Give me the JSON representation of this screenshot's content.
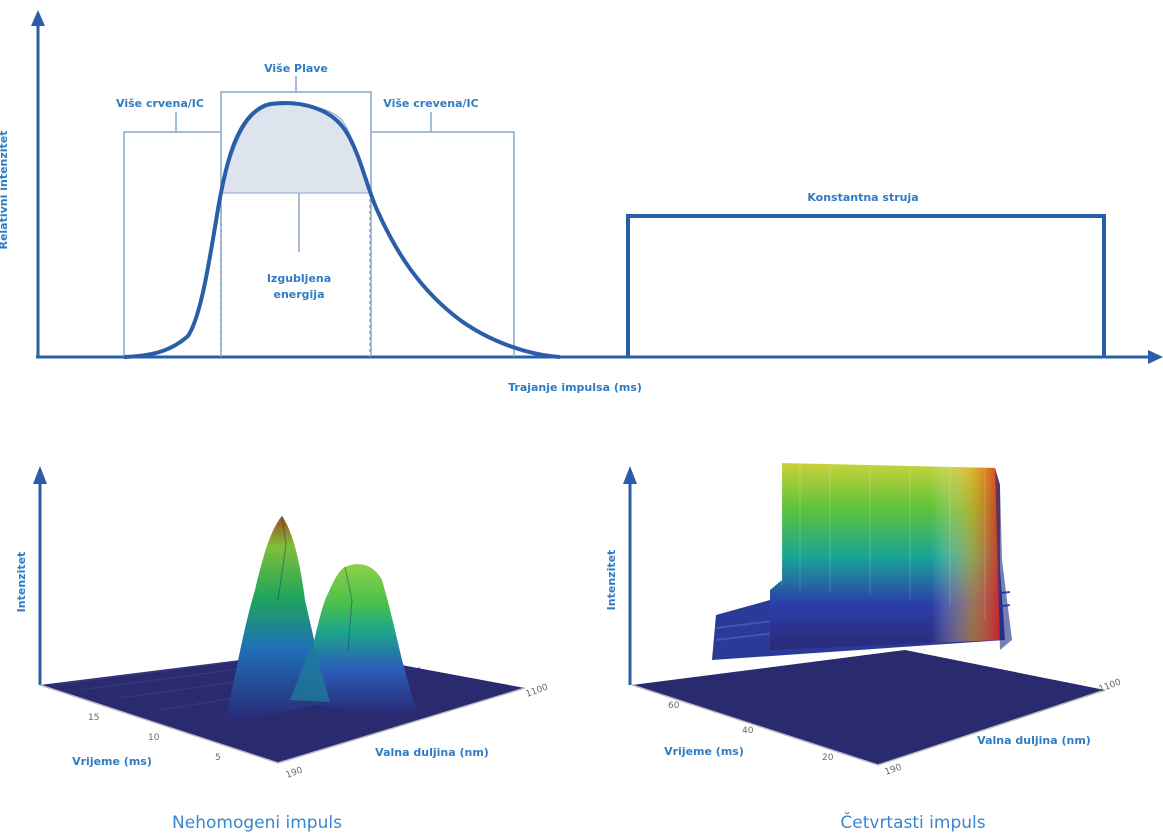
{
  "top": {
    "ylabel": "Relativni intenzitet",
    "xlabel": "Trajanje impulsa (ms)",
    "label_red_left": "Više crvena/IC",
    "label_blue": "Više Plave",
    "label_red_right": "Više crevena/IC",
    "label_lost_1": "Izgubljena",
    "label_lost_2": "energija",
    "label_constant": "Konstantna struja"
  },
  "bottom_left": {
    "ylabel": "Intenzitet",
    "xlabel": "Vrijeme (ms)",
    "zlabel": "Valna duljina (nm)",
    "time_ticks": [
      "15",
      "10",
      "5"
    ],
    "wave_ticks": [
      "1100",
      "190"
    ],
    "caption": "Nehomogeni impuls"
  },
  "bottom_right": {
    "ylabel": "Intenzitet",
    "xlabel": "Vrijeme (ms)",
    "zlabel": "Valna duljina (nm)",
    "time_ticks": [
      "60",
      "40",
      "20"
    ],
    "wave_ticks": [
      "1100",
      "190"
    ],
    "caption": "Četvrtasti impuls"
  },
  "colors": {
    "axis": "#2a5ea8",
    "curve": "#2a5ea8",
    "label": "#2f7cc4",
    "floor": "#2a2a6e",
    "lost_fill": "#dde4ee"
  }
}
